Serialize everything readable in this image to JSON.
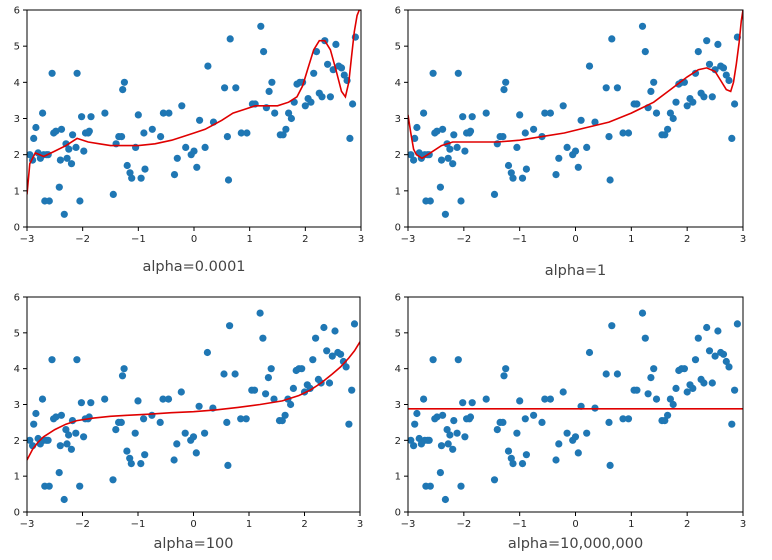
{
  "colors": {
    "points": "#1f77b4",
    "fit_line": "#e00000",
    "frame": "#000000"
  },
  "scatter_points": {
    "x": [
      -2.95,
      -2.9,
      -2.88,
      -2.84,
      -2.8,
      -2.76,
      -2.72,
      -2.7,
      -2.68,
      -2.65,
      -2.62,
      -2.6,
      -2.55,
      -2.52,
      -2.48,
      -2.42,
      -2.4,
      -2.38,
      -2.33,
      -2.3,
      -2.28,
      -2.25,
      -2.2,
      -2.18,
      -2.12,
      -2.1,
      -2.05,
      -2.02,
      -1.98,
      -1.95,
      -1.9,
      -1.88,
      -1.85,
      -1.6,
      -1.45,
      -1.4,
      -1.35,
      -1.3,
      -1.28,
      -1.25,
      -1.2,
      -1.15,
      -1.12,
      -1.05,
      -1.0,
      -0.95,
      -0.9,
      -0.88,
      -0.75,
      -0.6,
      -0.55,
      -0.45,
      -0.35,
      -0.3,
      -0.22,
      -0.15,
      -0.05,
      0.0,
      0.05,
      0.1,
      0.2,
      0.25,
      0.35,
      0.55,
      0.6,
      0.62,
      0.65,
      0.75,
      0.85,
      0.95,
      1.05,
      1.1,
      1.2,
      1.25,
      1.3,
      1.35,
      1.4,
      1.45,
      1.55,
      1.6,
      1.65,
      1.7,
      1.75,
      1.8,
      1.85,
      1.9,
      1.95,
      2.0,
      2.05,
      2.1,
      2.15,
      2.2,
      2.25,
      2.3,
      2.35,
      2.4,
      2.45,
      2.5,
      2.55,
      2.6,
      2.65,
      2.7,
      2.75,
      2.8,
      2.85,
      2.9
    ],
    "y": [
      2.0,
      1.85,
      2.45,
      2.75,
      2.05,
      1.9,
      3.15,
      2.0,
      0.72,
      2.0,
      2.0,
      0.72,
      4.25,
      2.6,
      2.65,
      1.1,
      1.85,
      2.7,
      0.35,
      2.3,
      1.9,
      2.15,
      1.75,
      2.55,
      2.2,
      4.25,
      0.72,
      3.05,
      2.1,
      2.6,
      2.6,
      2.65,
      3.05,
      3.15,
      0.9,
      2.3,
      2.5,
      2.5,
      3.8,
      4.0,
      1.7,
      1.5,
      1.35,
      2.2,
      3.1,
      1.35,
      2.6,
      1.6,
      2.7,
      2.5,
      3.15,
      3.15,
      1.45,
      1.9,
      3.35,
      2.2,
      2.0,
      2.1,
      1.65,
      2.95,
      2.2,
      4.45,
      2.9,
      3.85,
      2.5,
      1.3,
      5.2,
      3.85,
      2.6,
      2.6,
      3.4,
      3.4,
      5.55,
      4.85,
      3.3,
      3.75,
      4.0,
      3.15,
      2.55,
      2.55,
      2.7,
      3.15,
      3.0,
      3.45,
      3.95,
      4.0,
      4.0,
      3.35,
      3.55,
      3.45,
      4.25,
      4.85,
      3.7,
      3.6,
      5.15,
      4.5,
      3.6,
      4.35,
      5.05,
      4.45,
      4.4,
      4.2,
      4.05,
      2.45,
      3.4,
      5.25
    ]
  },
  "chart_data": [
    {
      "type": "scatter",
      "title": "alpha=0.0001",
      "xlim": [
        -3,
        3
      ],
      "ylim": [
        0,
        6
      ],
      "xticks": [
        -3,
        -2,
        -1,
        0,
        1,
        2,
        3
      ],
      "yticks": [
        0,
        1,
        2,
        3,
        4,
        5,
        6
      ],
      "xtick_labels": [
        "−3",
        "−2",
        "−1",
        "0",
        "1",
        "2",
        "3"
      ],
      "ytick_labels": [
        "0",
        "1",
        "2",
        "3",
        "4",
        "5",
        "6"
      ],
      "grid": false,
      "fit_curve": {
        "x": [
          -3.0,
          -2.95,
          -2.85,
          -2.7,
          -2.5,
          -2.3,
          -2.1,
          -1.9,
          -1.7,
          -1.5,
          -1.3,
          -1.0,
          -0.7,
          -0.4,
          -0.2,
          0.0,
          0.2,
          0.5,
          0.7,
          0.9,
          1.1,
          1.3,
          1.5,
          1.7,
          1.85,
          1.95,
          2.05,
          2.15,
          2.25,
          2.35,
          2.45,
          2.55,
          2.65,
          2.72,
          2.78,
          2.83,
          2.88,
          2.93,
          2.97,
          3.0
        ],
        "y": [
          0.9,
          1.75,
          2.05,
          1.95,
          2.1,
          2.25,
          2.45,
          2.35,
          2.3,
          2.25,
          2.25,
          2.25,
          2.3,
          2.4,
          2.5,
          2.6,
          2.7,
          2.95,
          3.15,
          3.25,
          3.35,
          3.35,
          3.35,
          3.45,
          3.6,
          3.9,
          4.4,
          4.9,
          5.15,
          5.15,
          4.9,
          4.35,
          3.75,
          3.6,
          4.0,
          4.7,
          5.4,
          5.85,
          6.0,
          6.0
        ]
      }
    },
    {
      "type": "scatter",
      "title": "alpha=1",
      "xlim": [
        -3,
        3
      ],
      "ylim": [
        0,
        6
      ],
      "xticks": [
        -3,
        -2,
        -1,
        0,
        1,
        2,
        3
      ],
      "yticks": [
        0,
        1,
        2,
        3,
        4,
        5,
        6
      ],
      "xtick_labels": [
        "−3",
        "−2",
        "−1",
        "0",
        "1",
        "2",
        "3"
      ],
      "ytick_labels": [
        "0",
        "1",
        "2",
        "3",
        "4",
        "5",
        "6"
      ],
      "grid": false,
      "fit_curve": {
        "x": [
          -3.0,
          -2.95,
          -2.9,
          -2.85,
          -2.75,
          -2.6,
          -2.4,
          -2.2,
          -2.0,
          -1.7,
          -1.4,
          -1.0,
          -0.6,
          -0.2,
          0.2,
          0.6,
          1.0,
          1.4,
          1.7,
          2.0,
          2.2,
          2.35,
          2.5,
          2.6,
          2.7,
          2.78,
          2.83,
          2.88,
          2.93,
          2.97,
          3.0
        ],
        "y": [
          3.1,
          2.6,
          2.15,
          2.0,
          1.9,
          2.05,
          2.25,
          2.35,
          2.35,
          2.35,
          2.35,
          2.4,
          2.5,
          2.6,
          2.75,
          2.9,
          3.15,
          3.45,
          3.8,
          4.15,
          4.35,
          4.4,
          4.3,
          4.05,
          3.8,
          3.75,
          4.0,
          4.5,
          5.1,
          5.7,
          6.0
        ]
      }
    },
    {
      "type": "scatter",
      "title": "alpha=100",
      "xlim": [
        -3,
        3
      ],
      "ylim": [
        0,
        6
      ],
      "xticks": [
        -3,
        -2,
        -1,
        0,
        1,
        2,
        3
      ],
      "yticks": [
        0,
        1,
        2,
        3,
        4,
        5,
        6
      ],
      "xtick_labels": [
        "−3",
        "−2",
        "−1",
        "0",
        "1",
        "2",
        "3"
      ],
      "ytick_labels": [
        "0",
        "1",
        "2",
        "3",
        "4",
        "5",
        "6"
      ],
      "grid": false,
      "fit_curve": {
        "x": [
          -3.0,
          -2.9,
          -2.8,
          -2.7,
          -2.6,
          -2.5,
          -2.3,
          -2.1,
          -1.8,
          -1.5,
          -1.2,
          -0.8,
          -0.4,
          0.0,
          0.4,
          0.8,
          1.2,
          1.6,
          1.9,
          2.1,
          2.3,
          2.5,
          2.65,
          2.8,
          2.9,
          3.0
        ],
        "y": [
          1.45,
          1.75,
          1.95,
          2.1,
          2.2,
          2.3,
          2.45,
          2.55,
          2.62,
          2.67,
          2.7,
          2.73,
          2.77,
          2.8,
          2.85,
          2.92,
          3.0,
          3.1,
          3.25,
          3.4,
          3.6,
          3.85,
          4.05,
          4.3,
          4.5,
          4.75
        ]
      }
    },
    {
      "type": "scatter",
      "title": "alpha=10,000,000",
      "xlim": [
        -3,
        3
      ],
      "ylim": [
        0,
        6
      ],
      "xticks": [
        -3,
        -2,
        -1,
        0,
        1,
        2,
        3
      ],
      "yticks": [
        0,
        1,
        2,
        3,
        4,
        5,
        6
      ],
      "xtick_labels": [
        "−3",
        "−2",
        "−1",
        "0",
        "1",
        "2",
        "3"
      ],
      "ytick_labels": [
        "0",
        "1",
        "2",
        "3",
        "4",
        "5",
        "6"
      ],
      "grid": false,
      "fit_curve": {
        "x": [
          -3.0,
          3.0
        ],
        "y": [
          2.88,
          2.88
        ]
      }
    }
  ]
}
